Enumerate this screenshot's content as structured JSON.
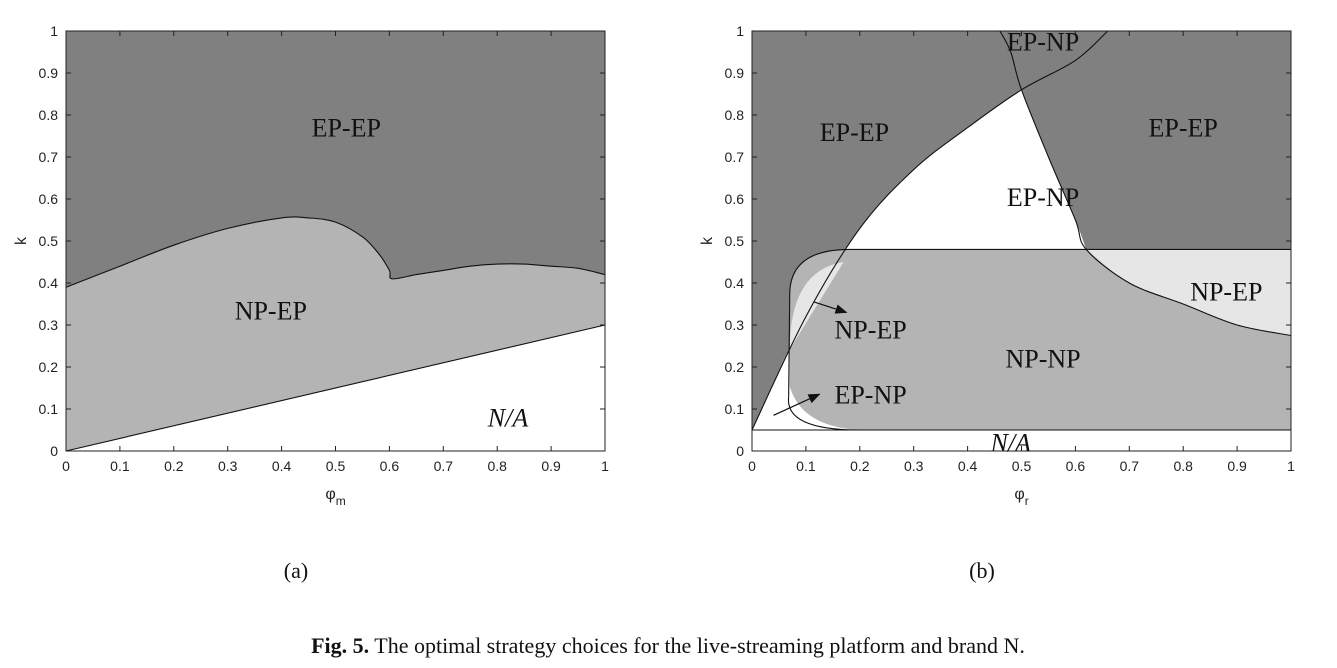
{
  "chart_data": [
    {
      "type": "area",
      "panel_label": "(a)",
      "xlabel": "φ",
      "xlabel_sub": "m",
      "ylabel": "k",
      "xlim": [
        0,
        1
      ],
      "ylim": [
        0,
        1
      ],
      "x_ticks": [
        "0",
        "0.1",
        "0.2",
        "0.3",
        "0.4",
        "0.5",
        "0.6",
        "0.7",
        "0.8",
        "0.9",
        "1"
      ],
      "y_ticks": [
        "0",
        "0.1",
        "0.2",
        "0.3",
        "0.4",
        "0.5",
        "0.6",
        "0.7",
        "0.8",
        "0.9",
        "1"
      ],
      "colors": {
        "dark": "#808080",
        "mid": "#b4b4b4",
        "light": "#e6e6e6",
        "white": "#ffffff"
      },
      "boundaries": {
        "upper": [
          [
            0,
            0.39
          ],
          [
            0.1,
            0.44
          ],
          [
            0.2,
            0.49
          ],
          [
            0.3,
            0.53
          ],
          [
            0.4,
            0.555
          ],
          [
            0.45,
            0.555
          ],
          [
            0.5,
            0.545
          ],
          [
            0.55,
            0.51
          ],
          [
            0.58,
            0.47
          ],
          [
            0.6,
            0.43
          ],
          [
            0.605,
            0.41
          ],
          [
            0.65,
            0.42
          ],
          [
            0.7,
            0.43
          ],
          [
            0.75,
            0.44
          ],
          [
            0.8,
            0.445
          ],
          [
            0.85,
            0.445
          ],
          [
            0.9,
            0.44
          ],
          [
            0.95,
            0.435
          ],
          [
            1.0,
            0.42
          ]
        ],
        "lower": [
          [
            0,
            0.0
          ],
          [
            1.0,
            0.3
          ]
        ]
      },
      "region_labels": [
        {
          "text": "EP-EP",
          "x": 0.52,
          "y": 0.77,
          "style": "normal"
        },
        {
          "text": "NP-EP",
          "x": 0.38,
          "y": 0.335,
          "style": "normal"
        },
        {
          "text": "N/A",
          "x": 0.82,
          "y": 0.08,
          "style": "italic"
        }
      ]
    },
    {
      "type": "area",
      "panel_label": "(b)",
      "xlabel": "φ",
      "xlabel_sub": "r",
      "ylabel": "k",
      "xlim": [
        0,
        1
      ],
      "ylim": [
        0,
        1
      ],
      "x_ticks": [
        "0",
        "0.1",
        "0.2",
        "0.3",
        "0.4",
        "0.5",
        "0.6",
        "0.7",
        "0.8",
        "0.9",
        "1"
      ],
      "y_ticks": [
        "0",
        "0.1",
        "0.2",
        "0.3",
        "0.4",
        "0.5",
        "0.6",
        "0.7",
        "0.8",
        "0.9",
        "1"
      ],
      "colors": {
        "dark": "#808080",
        "mid": "#b4b4b4",
        "light": "#e6e6e6",
        "white": "#ffffff"
      },
      "boundaries": {
        "diagonal": [
          [
            0.0,
            0.05
          ],
          [
            0.1,
            0.32
          ],
          [
            0.2,
            0.53
          ],
          [
            0.3,
            0.67
          ],
          [
            0.4,
            0.77
          ],
          [
            0.5,
            0.86
          ],
          [
            0.6,
            0.93
          ],
          [
            0.66,
            1.0
          ]
        ],
        "hyperbola": [
          [
            0.46,
            1.0
          ],
          [
            0.48,
            0.95
          ],
          [
            0.5,
            0.86
          ],
          [
            0.55,
            0.7
          ],
          [
            0.6,
            0.55
          ],
          [
            0.62,
            0.48
          ],
          [
            0.7,
            0.4
          ],
          [
            0.8,
            0.35
          ],
          [
            0.9,
            0.3
          ],
          [
            1.0,
            0.275
          ]
        ],
        "np_np_box": {
          "x_min": 0.07,
          "x_max": 1.0,
          "y_min": 0.05,
          "y_max": 0.48
        },
        "na_floor": 0.05
      },
      "region_labels": [
        {
          "text": "EP-EP",
          "x": 0.19,
          "y": 0.76,
          "size": "large"
        },
        {
          "text": "EP-EP",
          "x": 0.8,
          "y": 0.77,
          "size": "large"
        },
        {
          "text": "EP-NP",
          "x": 0.54,
          "y": 0.605,
          "size": "large"
        },
        {
          "text": "EP-NP",
          "x": 0.54,
          "y": 0.97,
          "size": "small"
        },
        {
          "text": "NP-EP",
          "x": 0.88,
          "y": 0.38,
          "size": "large"
        },
        {
          "text": "NP-EP",
          "x": 0.22,
          "y": 0.29,
          "size": "large"
        },
        {
          "text": "NP-NP",
          "x": 0.54,
          "y": 0.22,
          "size": "large"
        },
        {
          "text": "EP-NP",
          "x": 0.22,
          "y": 0.135,
          "size": "large"
        },
        {
          "text": "N/A",
          "x": 0.48,
          "y": 0.015,
          "size": "small",
          "style": "italic"
        }
      ]
    }
  ],
  "caption": {
    "prefix": "Fig. 5.",
    "text": " The optimal strategy choices for the live-streaming platform and brand N."
  }
}
